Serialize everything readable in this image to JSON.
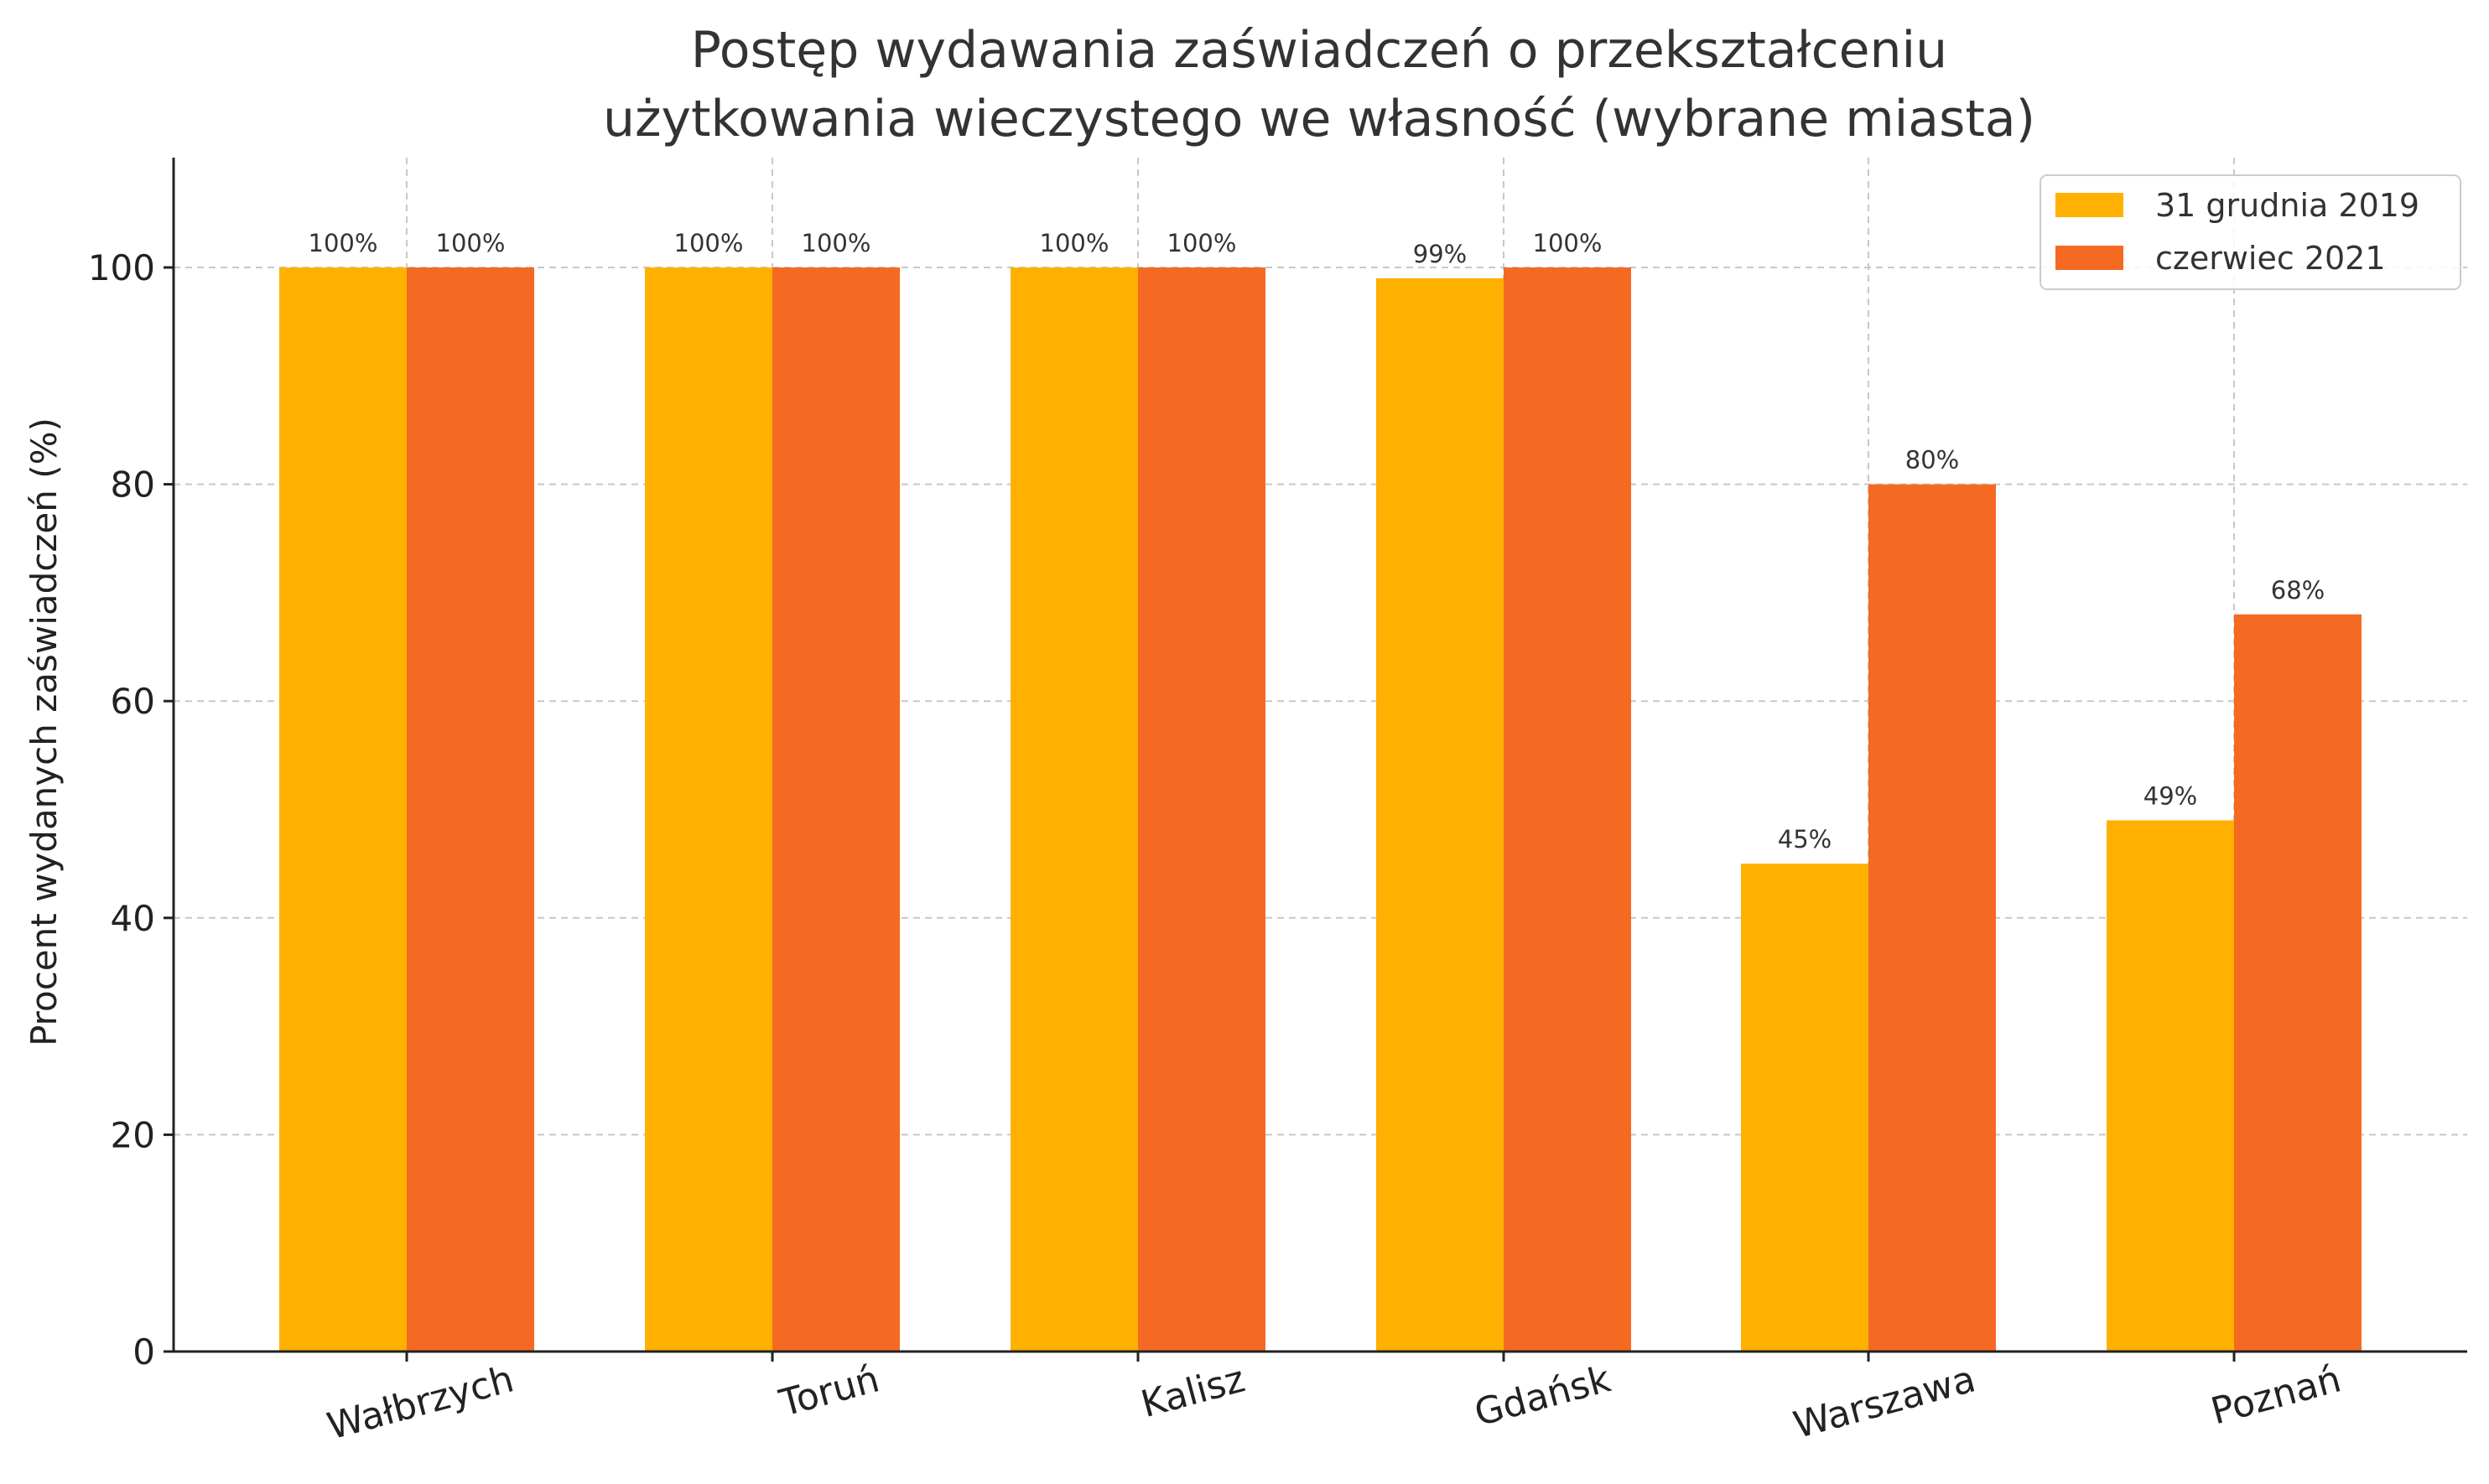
{
  "chart_data": {
    "type": "bar",
    "title": [
      "Postęp wydawania zaświadczeń o przekształceniu",
      "użytkowania wieczystego we własność (wybrane miasta)"
    ],
    "xlabel": "",
    "ylabel": "Procent wydanych zaświadczeń (%)",
    "categories": [
      "Wałbrzych",
      "Toruń",
      "Kalisz",
      "Gdańsk",
      "Warszawa",
      "Poznań"
    ],
    "series": [
      {
        "name": "31 grudnia 2019",
        "color": "#FFB000",
        "values": [
          100,
          100,
          100,
          99,
          45,
          49
        ],
        "labels": [
          "100%",
          "100%",
          "100%",
          "99%",
          "45%",
          "49%"
        ]
      },
      {
        "name": "czerwiec 2021",
        "color": "#F46A22",
        "values": [
          100,
          100,
          100,
          100,
          80,
          68
        ],
        "labels": [
          "100%",
          "100%",
          "100%",
          "100%",
          "80%",
          "68%"
        ]
      }
    ],
    "yticks": [
      0,
      20,
      40,
      60,
      80,
      100
    ],
    "ylim": [
      0,
      110
    ],
    "grid": true,
    "legend": "top-right"
  }
}
